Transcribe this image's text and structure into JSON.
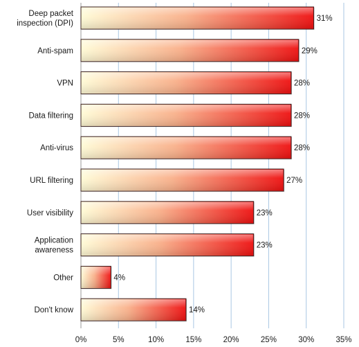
{
  "chart_data": {
    "type": "bar",
    "orientation": "horizontal",
    "title": "",
    "xlabel": "",
    "ylabel": "",
    "categories": [
      [
        "Deep packet",
        "inspection (DPI)"
      ],
      [
        "Anti-spam"
      ],
      [
        "VPN"
      ],
      [
        "Data filtering"
      ],
      [
        "Anti-virus"
      ],
      [
        "URL filtering"
      ],
      [
        "User visibility"
      ],
      [
        "Application",
        "awareness"
      ],
      [
        "Other"
      ],
      [
        "Don't know"
      ]
    ],
    "values": [
      31,
      29,
      28,
      28,
      28,
      27,
      23,
      23,
      4,
      14
    ],
    "value_labels": [
      "31%",
      "29%",
      "28%",
      "28%",
      "28%",
      "27%",
      "23%",
      "23%",
      "4%",
      "14%"
    ],
    "xlim": [
      0,
      35
    ],
    "xticks": [
      0,
      5,
      10,
      15,
      20,
      25,
      30,
      35
    ],
    "xtick_labels": [
      "0%",
      "5%",
      "10%",
      "15%",
      "20%",
      "25%",
      "30%",
      "35%"
    ],
    "grid": "vertical",
    "legend": "none",
    "colors": {
      "bar_start": "#fffbd6",
      "bar_mid": "#f9b08a",
      "bar_end": "#ee1010",
      "bar_stroke": "#3a2222",
      "grid": "#a9c7e3",
      "axis": "#9a9a9a"
    }
  }
}
